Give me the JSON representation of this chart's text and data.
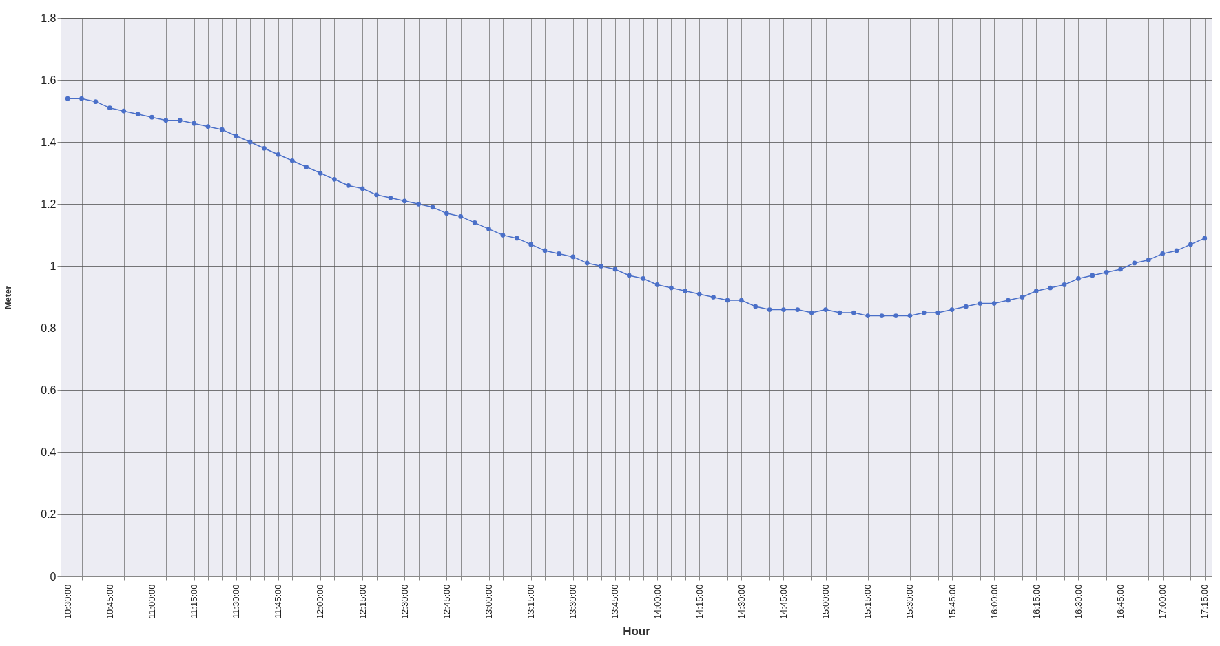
{
  "chart_data": {
    "type": "line",
    "xlabel": "Hour",
    "ylabel": "Meter",
    "categories": [
      "10:30:00",
      null,
      null,
      "10:45:00",
      null,
      null,
      "11:00:00",
      null,
      null,
      "11:15:00",
      null,
      null,
      "11:30:00",
      null,
      null,
      "11:45:00",
      null,
      null,
      "12:00:00",
      null,
      null,
      "12:15:00",
      null,
      null,
      "12:30:00",
      null,
      null,
      "12:45:00",
      null,
      null,
      "13:00:00",
      null,
      null,
      "13:15:00",
      null,
      null,
      "13:30:00",
      null,
      null,
      "13:45:00",
      null,
      null,
      "14:00:00",
      null,
      null,
      "14:15:00",
      null,
      null,
      "14:30:00",
      null,
      null,
      "14:45:00",
      null,
      null,
      "15:00:00",
      null,
      null,
      "15:15:00",
      null,
      null,
      "15:30:00",
      null,
      null,
      "15:45:00",
      null,
      null,
      "16:00:00",
      null,
      null,
      "16:15:00",
      null,
      null,
      "16:30:00",
      null,
      null,
      "16:45:00",
      null,
      null,
      "17:00:00",
      null,
      null,
      "17:15:00"
    ],
    "values": [
      1.54,
      1.54,
      1.53,
      1.51,
      1.5,
      1.49,
      1.48,
      1.47,
      1.47,
      1.46,
      1.45,
      1.44,
      1.42,
      1.4,
      1.38,
      1.36,
      1.34,
      1.32,
      1.3,
      1.28,
      1.26,
      1.25,
      1.23,
      1.22,
      1.21,
      1.2,
      1.19,
      1.17,
      1.16,
      1.14,
      1.12,
      1.1,
      1.09,
      1.07,
      1.05,
      1.04,
      1.03,
      1.01,
      1.0,
      0.99,
      0.97,
      0.96,
      0.94,
      0.93,
      0.92,
      0.91,
      0.9,
      0.89,
      0.89,
      0.87,
      0.86,
      0.86,
      0.86,
      0.85,
      0.86,
      0.85,
      0.85,
      0.84,
      0.84,
      0.84,
      0.84,
      0.85,
      0.85,
      0.86,
      0.87,
      0.88,
      0.88,
      0.89,
      0.9,
      0.92,
      0.93,
      0.94,
      0.96,
      0.97,
      0.98,
      0.99,
      1.01,
      1.02,
      1.04,
      1.05,
      1.07,
      1.09
    ],
    "color": "#4a6fc8",
    "ylim": [
      0,
      1.8
    ],
    "yticks": [
      0,
      0.2,
      0.4,
      0.6,
      0.8,
      1,
      1.2,
      1.4,
      1.6,
      1.8
    ],
    "grid": true,
    "marker": "circle",
    "line_style": "solid"
  }
}
